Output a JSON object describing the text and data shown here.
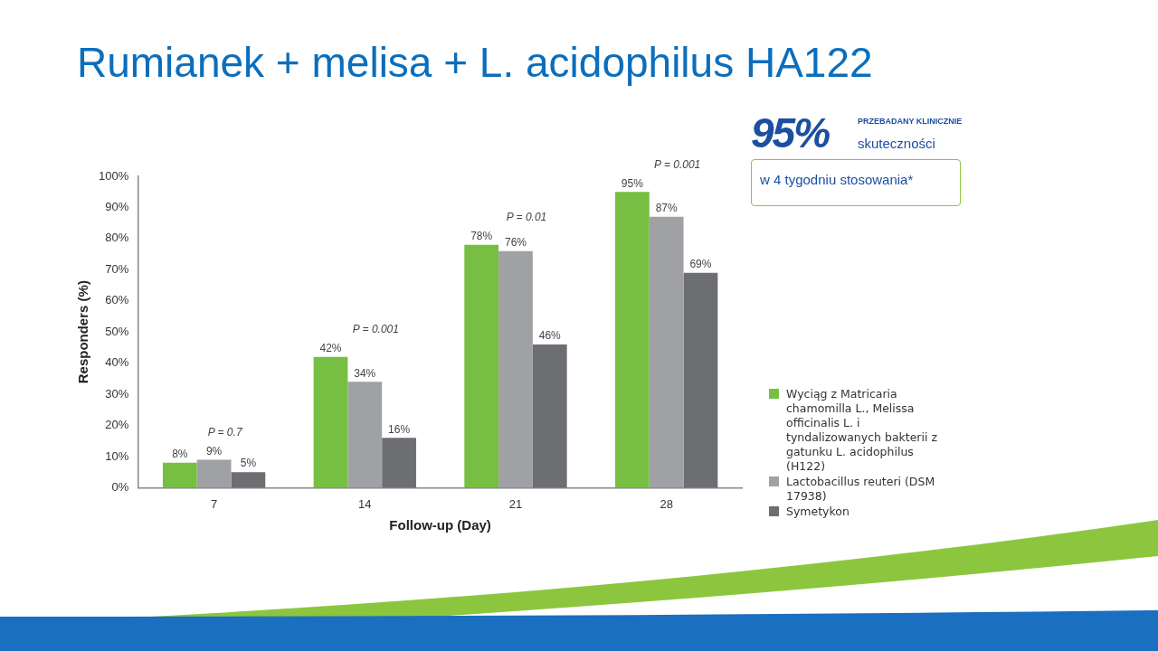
{
  "chart_data": {
    "type": "bar",
    "title": "Rumianek + melisa + L. acidophilus HA122",
    "xlabel": "Follow-up (Day)",
    "ylabel": "Responders (%)",
    "categories": [
      "7",
      "14",
      "21",
      "28"
    ],
    "series": [
      {
        "name": "Wyciąg z Matricaria chamomilla L., Melissa officinalis L. i tyndalizowanych bakterii z gatunku L. acidophilus (H122)",
        "color": "#76bf43",
        "values": [
          8,
          42,
          78,
          95
        ],
        "value_labels": [
          "8%",
          "42%",
          "78%",
          "95%"
        ]
      },
      {
        "name": "Lactobacillus reuteri (DSM 17938)",
        "color": "#a0a1a5",
        "values": [
          9,
          34,
          76,
          87
        ],
        "value_labels": [
          "9%",
          "34%",
          "76%",
          "87%"
        ]
      },
      {
        "name": "Symetykon",
        "color": "#6d6e71",
        "values": [
          5,
          16,
          46,
          69
        ],
        "value_labels": [
          "5%",
          "16%",
          "46%",
          "69%"
        ]
      }
    ],
    "ylim": [
      0,
      100
    ],
    "yticks": [
      {
        "value": 0,
        "label": "0%"
      },
      {
        "value": 10,
        "label": "10%"
      },
      {
        "value": 20,
        "label": "20%"
      },
      {
        "value": 30,
        "label": "30%"
      },
      {
        "value": 40,
        "label": "40%"
      },
      {
        "value": 50,
        "label": "50%"
      },
      {
        "value": 60,
        "label": "60%"
      },
      {
        "value": 70,
        "label": "70%"
      },
      {
        "value": 80,
        "label": "80%"
      },
      {
        "value": 90,
        "label": "90%"
      },
      {
        "value": 100,
        "label": "100%"
      }
    ],
    "grid": false,
    "legend": "right",
    "annotations": [
      "P = 0.7",
      "P = 0.001",
      "P = 0.01",
      "P = 0.001",
      "95%",
      "PRZEBADANY KLINICZNIE",
      "skuteczności",
      "w 4 tygodniu stosowania*"
    ]
  }
}
